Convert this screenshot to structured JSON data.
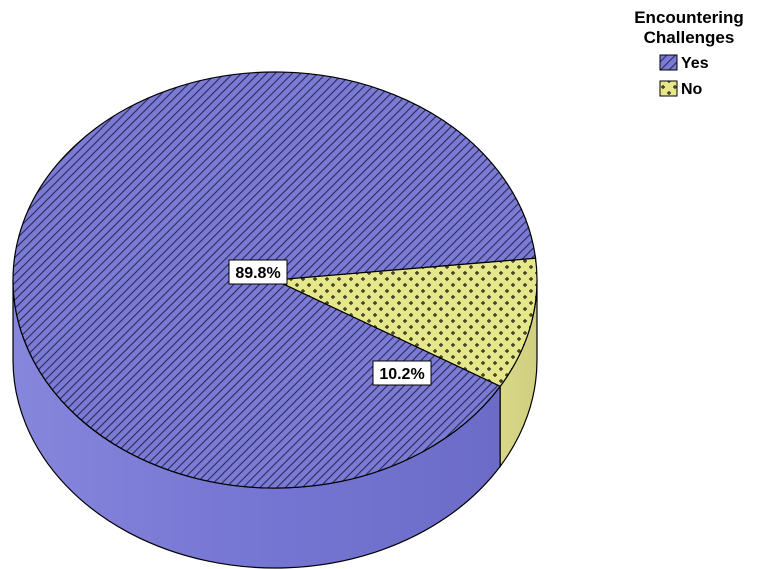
{
  "chart_data": {
    "type": "pie",
    "style": "3d",
    "legend_title": "Encountering Challenges",
    "legend_title_lines": [
      "Encountering",
      "Challenges"
    ],
    "legend_position": "top-right",
    "slices": [
      {
        "label": "Yes",
        "value": 89.8,
        "data_label": "89.8%",
        "color": "#7b7bd6",
        "pattern": "diagonal-hatch"
      },
      {
        "label": "No",
        "value": 10.2,
        "data_label": "10.2%",
        "color": "#e6e68a",
        "pattern": "crosshatch-dots"
      }
    ]
  }
}
